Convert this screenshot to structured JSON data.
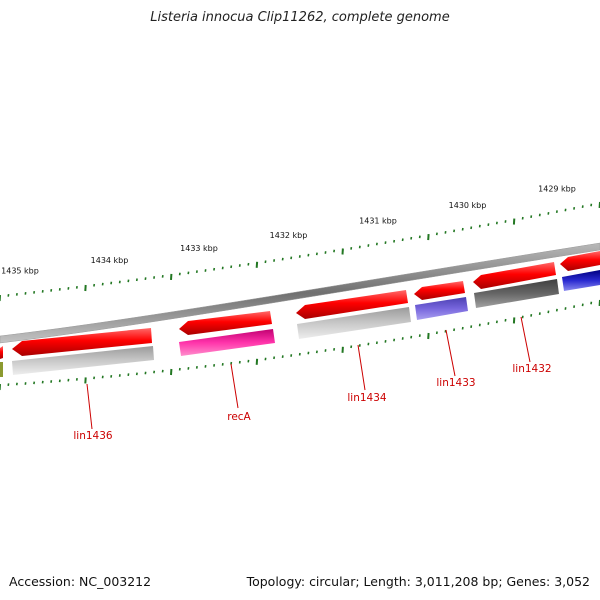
{
  "title": "Listeria innocua Clip11262, complete genome",
  "footer": {
    "accession_label": "Accession:",
    "accession": "NC_003212",
    "topology_label": "Topology:",
    "topology": "circular",
    "length_label": "Length:",
    "length": "3,011,208 bp",
    "genes_label": "Genes:",
    "genes": "3,052"
  },
  "ticks": [
    {
      "label": "1429 kbp",
      "kbp": 1429
    },
    {
      "label": "1430 kbp",
      "kbp": 1430
    },
    {
      "label": "1431 kbp",
      "kbp": 1431
    },
    {
      "label": "1432 kbp",
      "kbp": 1432
    },
    {
      "label": "1433 kbp",
      "kbp": 1433
    },
    {
      "label": "1434 kbp",
      "kbp": 1434
    },
    {
      "label": "1435 kbp",
      "kbp": 1435
    }
  ],
  "gene_labels": [
    {
      "name": "lin1436",
      "color": "#cc0000"
    },
    {
      "name": "recA",
      "color": "#cc0000"
    },
    {
      "name": "lin1434",
      "color": "#cc0000"
    },
    {
      "name": "lin1433",
      "color": "#cc0000"
    },
    {
      "name": "lin1432",
      "color": "#cc0000"
    }
  ],
  "colors": {
    "gene": "#ff0000",
    "recA_function": "#ff33aa",
    "lin1433_function": "#7766dd",
    "lin1432_function": "#666666",
    "unknown_function": "#bbbbbb",
    "tick": "#227722",
    "backbone": "#888888"
  }
}
